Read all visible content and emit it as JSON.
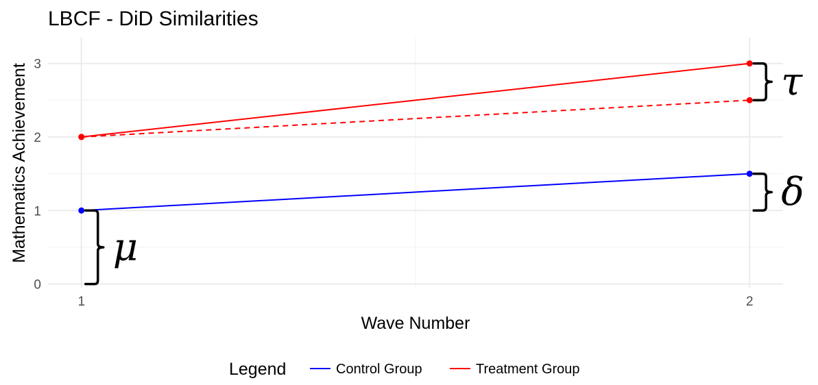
{
  "chart_data": {
    "type": "line",
    "title": "LBCF - DiD Similarities",
    "xlabel": "Wave Number",
    "ylabel": "Mathematics Achievement",
    "xlim": [
      0.95,
      2.05
    ],
    "ylim": [
      -0.05,
      3.35
    ],
    "x_ticks": [
      "1",
      "2"
    ],
    "y_ticks": [
      "0",
      "1",
      "2",
      "3"
    ],
    "grid": true,
    "legend_position": "bottom",
    "legend": {
      "title": "Legend",
      "entries": [
        "Control Group",
        "Treatment Group"
      ]
    },
    "series": [
      {
        "name": "Control Group",
        "color": "#0000ff",
        "style": "solid",
        "x": [
          1,
          2
        ],
        "y": [
          1.0,
          1.5
        ]
      },
      {
        "name": "Treatment Group",
        "color": "#ff0000",
        "style": "solid",
        "x": [
          1,
          2
        ],
        "y": [
          2.0,
          3.0
        ]
      },
      {
        "color": "#ff0000",
        "style": "dashed",
        "x": [
          1,
          2
        ],
        "y": [
          2.0,
          2.5
        ]
      }
    ],
    "annotations": [
      {
        "symbol": "μ",
        "x": 1,
        "y_range": [
          0,
          1
        ]
      },
      {
        "symbol": "δ",
        "x": 2,
        "y_range": [
          1,
          1.5
        ]
      },
      {
        "symbol": "τ",
        "x": 2,
        "y_range": [
          2.5,
          3
        ]
      }
    ]
  }
}
